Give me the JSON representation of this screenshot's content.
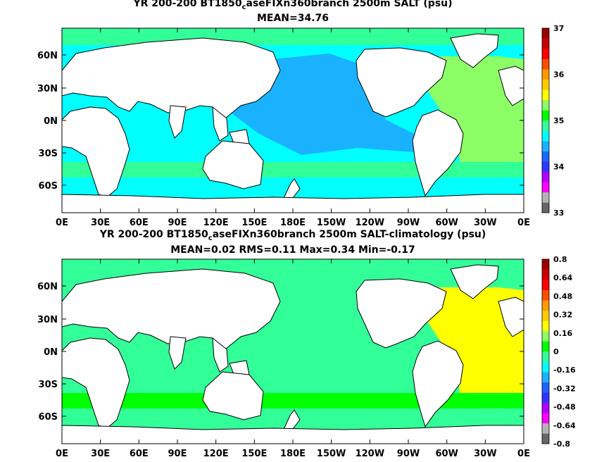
{
  "panels": [
    {
      "title_pre": "YR 200-200 BT1850",
      "title_sub": "c",
      "title_post": "aseFIXn360branch 2500m SALT (psu)",
      "stats": "MEAN=34.76",
      "colorbar_labels": [
        "37",
        "36",
        "35",
        "34",
        "33"
      ],
      "colors": {
        "pacific": "#1ab2ff",
        "indian_south": "#00ffff",
        "atlantic": "#8cff66",
        "southern_band": "#33ff99",
        "arctic": "#33ff99",
        "land": "#ffffff"
      },
      "colorbar_colors": [
        "#666666",
        "#b3b3b3",
        "#ff00ff",
        "#b300ff",
        "#3333ff",
        "#1a66ff",
        "#1ab2ff",
        "#00ffff",
        "#33ff99",
        "#00ff00",
        "#8cff66",
        "#ffff00",
        "#ffcc00",
        "#ff9900",
        "#ff4d00",
        "#ff0000",
        "#cc0000",
        "#990000"
      ]
    },
    {
      "title_pre": "YR 200-200 BT1850",
      "title_sub": "c",
      "title_post": "aseFIXn360branch 2500m SALT-climatology (psu)",
      "stats": "MEAN=0.02   RMS=0.11   Max=0.34   Min=-0.17",
      "colorbar_labels": [
        "0.8",
        "0.64",
        "0.48",
        "0.32",
        "0.16",
        "0",
        "-0.16",
        "-0.32",
        "-0.48",
        "-0.64",
        "-0.8"
      ],
      "colors": {
        "pacific": "#33ff99",
        "indian_south": "#33ff99",
        "atlantic": "#ffff00",
        "southern_band": "#00ff00",
        "arctic": "#33ff99",
        "land": "#ffffff"
      },
      "colorbar_colors": [
        "#666666",
        "#b3b3b3",
        "#ff00ff",
        "#b300ff",
        "#3333ff",
        "#1a66ff",
        "#1ab2ff",
        "#00ffff",
        "#33ff99",
        "#00ff00",
        "#8cff66",
        "#ffff00",
        "#ffcc00",
        "#ff9900",
        "#ff4d00",
        "#ff0000",
        "#cc0000",
        "#990000"
      ]
    }
  ],
  "lat_labels": [
    "60N",
    "30N",
    "0N",
    "30S",
    "60S"
  ],
  "lon_labels": [
    "0E",
    "30E",
    "60E",
    "90E",
    "120E",
    "150E",
    "180E",
    "150W",
    "120W",
    "90W",
    "60W",
    "30W",
    "0E"
  ]
}
